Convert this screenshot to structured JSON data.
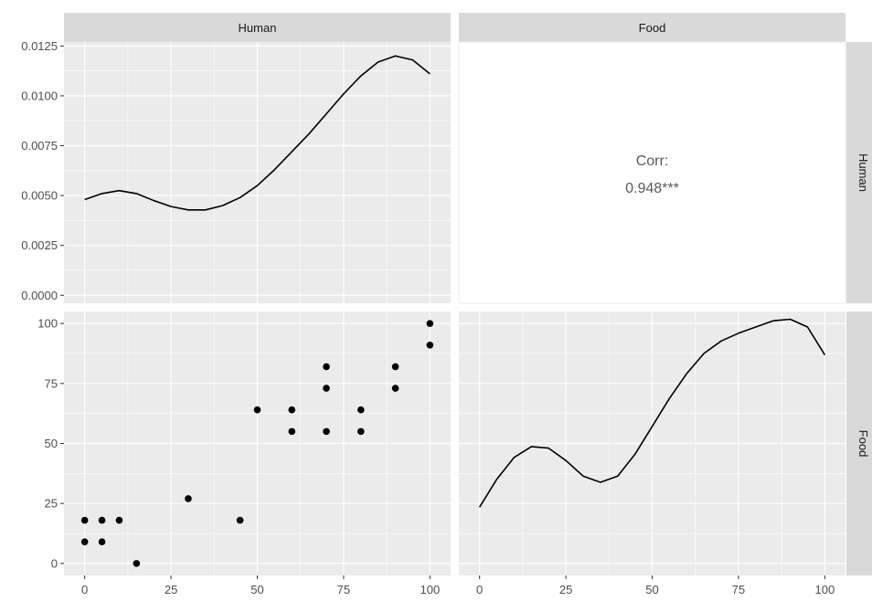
{
  "chart_data": {
    "type": "pairs",
    "variables": [
      "Human",
      "Food"
    ],
    "panels": {
      "human_density": {
        "type": "line",
        "x": [
          0,
          5,
          10,
          15,
          20,
          25,
          30,
          35,
          40,
          45,
          50,
          55,
          60,
          65,
          70,
          75,
          80,
          85,
          90,
          95,
          100
        ],
        "y": [
          0.0048,
          0.0051,
          0.00525,
          0.0051,
          0.00475,
          0.00445,
          0.00428,
          0.00428,
          0.0045,
          0.0049,
          0.0055,
          0.0063,
          0.0072,
          0.0081,
          0.0091,
          0.0101,
          0.011,
          0.0117,
          0.012,
          0.0118,
          0.0111
        ],
        "xlim": [
          -6,
          106
        ],
        "ylim": [
          -0.0004,
          0.0127
        ],
        "yticks": [
          0.0,
          0.0025,
          0.005,
          0.0075,
          0.01,
          0.0125
        ],
        "ytick_labels": [
          "0.0000",
          "0.0025",
          "0.0050",
          "0.0075",
          "0.0100",
          "0.0125"
        ]
      },
      "correlation": {
        "label": "Corr:",
        "value": "0.948***"
      },
      "scatter": {
        "type": "scatter",
        "points": [
          [
            0,
            18
          ],
          [
            0,
            9
          ],
          [
            5,
            18
          ],
          [
            5,
            9
          ],
          [
            10,
            18
          ],
          [
            15,
            0
          ],
          [
            30,
            27
          ],
          [
            45,
            18
          ],
          [
            50,
            64
          ],
          [
            60,
            64
          ],
          [
            60,
            55
          ],
          [
            70,
            82
          ],
          [
            70,
            73
          ],
          [
            70,
            55
          ],
          [
            80,
            64
          ],
          [
            80,
            55
          ],
          [
            90,
            82
          ],
          [
            90,
            73
          ],
          [
            100,
            100
          ],
          [
            100,
            91
          ]
        ],
        "xlim": [
          -6,
          106
        ],
        "ylim": [
          -5,
          105
        ],
        "xticks": [
          0,
          25,
          50,
          75,
          100
        ],
        "yticks": [
          0,
          25,
          50,
          75,
          100
        ]
      },
      "food_density": {
        "type": "line",
        "x": [
          0,
          5,
          10,
          15,
          20,
          25,
          30,
          35,
          40,
          45,
          50,
          55,
          60,
          65,
          70,
          75,
          80,
          85,
          90,
          95,
          100
        ],
        "y": [
          0.42,
          0.51,
          0.58,
          0.615,
          0.61,
          0.57,
          0.52,
          0.5,
          0.52,
          0.59,
          0.68,
          0.77,
          0.85,
          0.915,
          0.955,
          0.98,
          1.0,
          1.02,
          1.025,
          1.0,
          0.91
        ],
        "xlim": [
          -6,
          106
        ],
        "ylim": [
          0.2,
          1.05
        ]
      }
    },
    "xticks": [
      0,
      25,
      50,
      75,
      100
    ],
    "xtick_labels": [
      "0",
      "25",
      "50",
      "75",
      "100"
    ],
    "colors": {
      "panel_background": "#ebebeb",
      "strip_background": "#d9d9d9",
      "grid": "#ffffff",
      "points": "#000000",
      "line": "#000000"
    }
  }
}
